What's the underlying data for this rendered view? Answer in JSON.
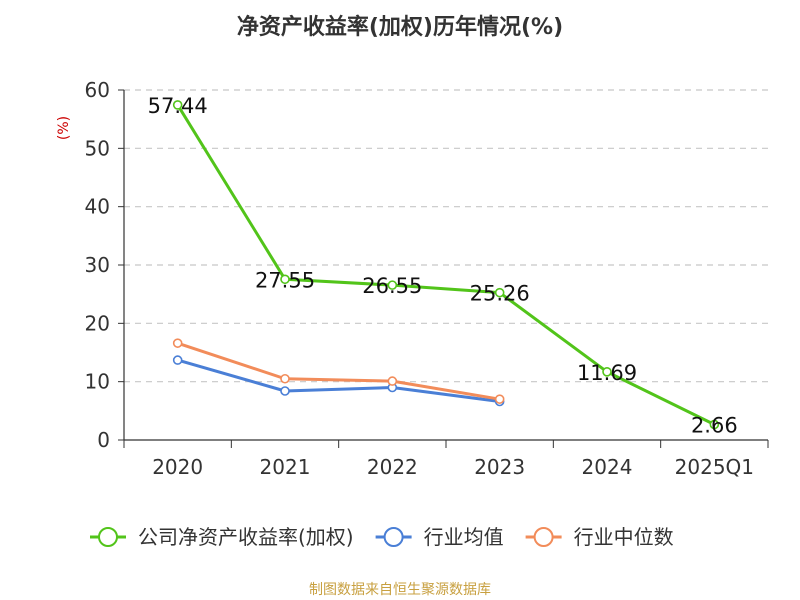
{
  "chart_data": {
    "type": "line",
    "title": "净资产收益率(加权)历年情况(%)",
    "ylabel": "(%)",
    "xlabel": "",
    "categories": [
      "2020",
      "2021",
      "2022",
      "2023",
      "2024",
      "2025Q1"
    ],
    "ylim": [
      0,
      60
    ],
    "yticks": [
      0,
      10,
      20,
      30,
      40,
      50,
      60
    ],
    "grid": true,
    "legend_position": "bottom",
    "series": [
      {
        "name": "公司净资产收益率(加权)",
        "color": "#52c41a",
        "values": [
          57.44,
          27.55,
          26.55,
          25.26,
          11.69,
          2.66
        ],
        "labels": [
          "57.44",
          "27.55",
          "26.55",
          "25.26",
          "11.69",
          "2.66"
        ]
      },
      {
        "name": "行业均值",
        "color": "#4a7fd6",
        "values": [
          13.7,
          8.4,
          9.0,
          6.6,
          null,
          null
        ]
      },
      {
        "name": "行业中位数",
        "color": "#f28c5a",
        "values": [
          16.6,
          10.5,
          10.1,
          7.0,
          null,
          null
        ]
      }
    ]
  },
  "title_color": "#333333",
  "ylabel_color": "#cc0000",
  "source": "制图数据来自恒生聚源数据库",
  "source_color": "#c8a040"
}
